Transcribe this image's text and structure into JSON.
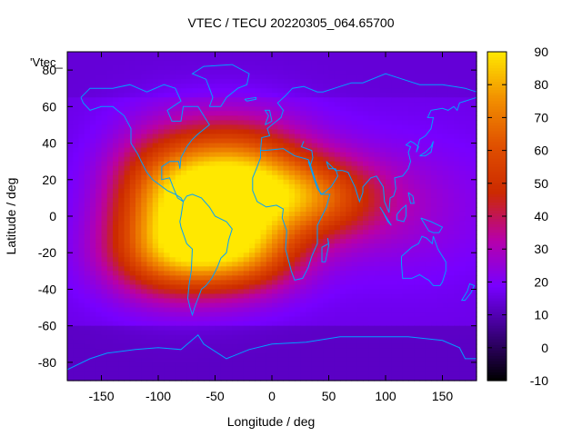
{
  "chart_data": {
    "type": "heatmap",
    "title": "VTEC / TECU 20220305_064.65700",
    "xlabel": "Longitude / deg",
    "ylabel": "Latitude / deg",
    "legend_entry": "'Vtec_",
    "xlim": [
      -180,
      180
    ],
    "ylim": [
      -90,
      90
    ],
    "xticks": [
      -150,
      -100,
      -50,
      0,
      50,
      100,
      150
    ],
    "yticks": [
      80,
      60,
      40,
      20,
      0,
      -20,
      -40,
      -60,
      -80
    ],
    "colorbar": {
      "range": [
        -10,
        90
      ],
      "ticks": [
        90,
        80,
        70,
        60,
        50,
        40,
        30,
        20,
        10,
        0,
        -10
      ]
    },
    "field_model": {
      "background_tecu": 16,
      "hotspots": [
        {
          "lon": -32,
          "lat": 17,
          "peak_tecu": 72,
          "sigma_lon": 45,
          "sigma_lat": 22
        },
        {
          "lon": -95,
          "lat": 8,
          "peak_tecu": 42,
          "sigma_lon": 35,
          "sigma_lat": 24
        },
        {
          "lon": -78,
          "lat": -22,
          "peak_tecu": 44,
          "sigma_lon": 45,
          "sigma_lat": 16
        },
        {
          "lon": -20,
          "lat": -20,
          "peak_tecu": 30,
          "sigma_lon": 35,
          "sigma_lat": 15
        },
        {
          "lon": 40,
          "lat": 10,
          "peak_tecu": 34,
          "sigma_lon": 40,
          "sigma_lat": 15
        },
        {
          "lon": 110,
          "lat": 5,
          "peak_tecu": 10,
          "sigma_lon": 60,
          "sigma_lat": 25
        }
      ]
    }
  },
  "colors": {
    "coastline": "#00a0ff",
    "colormap": [
      "#000000",
      "#3a0080",
      "#7700ff",
      "#b800a8",
      "#cc2a00",
      "#e05000",
      "#f29000",
      "#ffe800"
    ]
  }
}
